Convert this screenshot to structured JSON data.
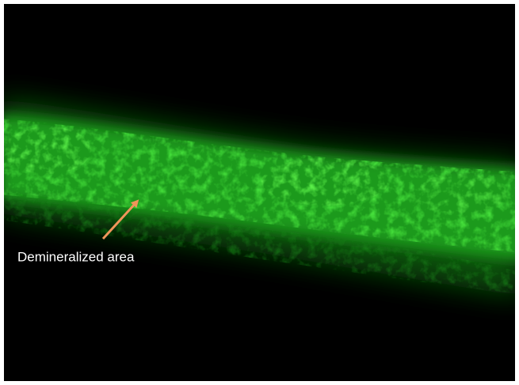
{
  "annotation": {
    "label": "Demineralized area"
  }
}
